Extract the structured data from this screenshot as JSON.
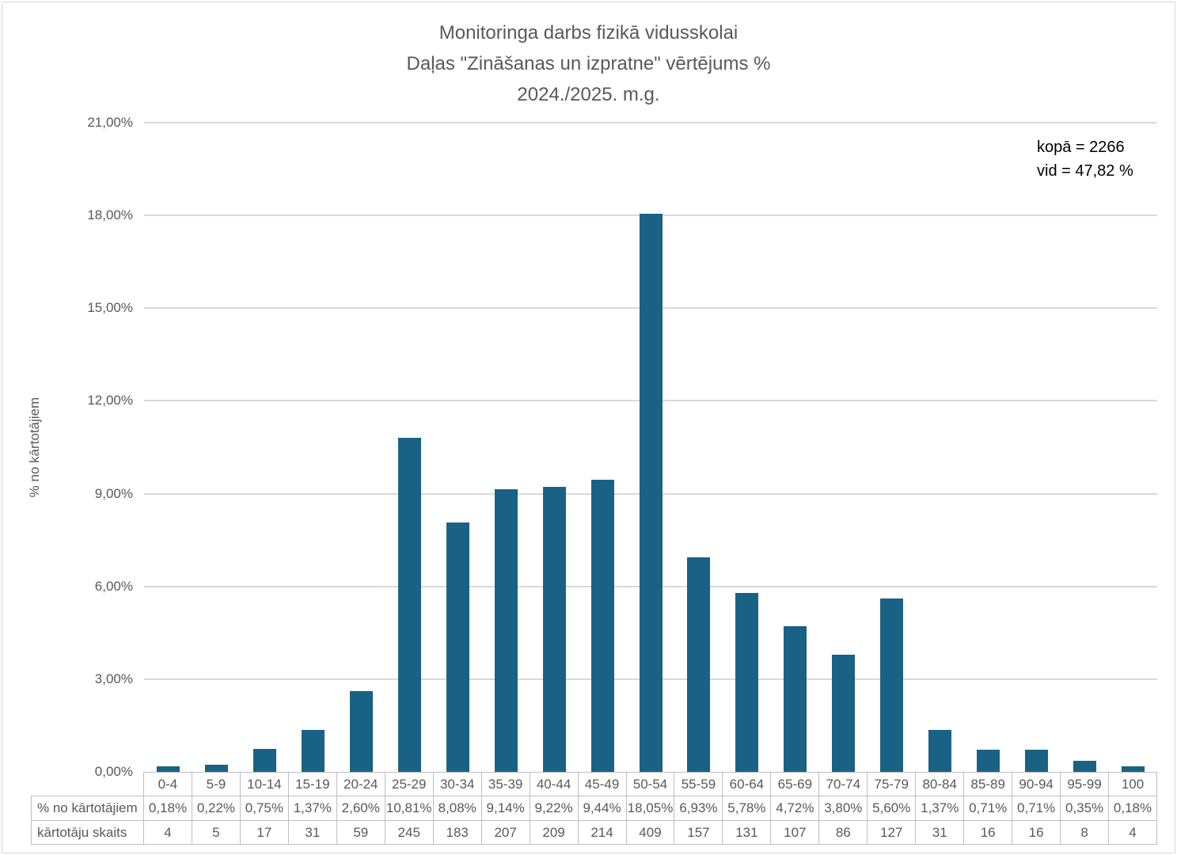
{
  "title": {
    "line1": "Monitoringa darbs fizikā vidusskolai",
    "line2": "Daļas \"Zināšanas un izpratne\" vērtējums %",
    "line3": "2024./2025. m.g."
  },
  "annotation": {
    "total_label": "kopā = 2266",
    "average_label": "vid = 47,82 %"
  },
  "chart_data": {
    "type": "bar",
    "title": "Monitoringa darbs fizikā vidusskolai — Daļas \"Zināšanas un izpratne\" vērtējums % — 2024./2025. m.g.",
    "xlabel": "",
    "ylabel": "% no kārtotājiem",
    "ylim": [
      0,
      21
    ],
    "ytick_step": 3,
    "ytick_labels": [
      "0,00%",
      "3,00%",
      "6,00%",
      "9,00%",
      "12,00%",
      "15,00%",
      "18,00%",
      "21,00%"
    ],
    "grid": true,
    "legend": "none",
    "bar_color": "#1a6285",
    "categories": [
      "0-4",
      "5-9",
      "10-14",
      "15-19",
      "20-24",
      "25-29",
      "30-34",
      "35-39",
      "40-44",
      "45-49",
      "50-54",
      "55-59",
      "60-64",
      "65-69",
      "70-74",
      "75-79",
      "80-84",
      "85-89",
      "90-94",
      "95-99",
      "100"
    ],
    "values": [
      0.18,
      0.22,
      0.75,
      1.37,
      2.6,
      10.81,
      8.08,
      9.14,
      9.22,
      9.44,
      18.05,
      6.93,
      5.78,
      4.72,
      3.8,
      5.6,
      1.37,
      0.71,
      0.71,
      0.35,
      0.18
    ],
    "totals": {
      "kopa": 2266,
      "vid_percent": "47,82"
    },
    "data_table": {
      "percent_row_label": "% no kārtotājiem",
      "percent_row_values": [
        "0,18%",
        "0,22%",
        "0,75%",
        "1,37%",
        "2,60%",
        "10,81%",
        "8,08%",
        "9,14%",
        "9,22%",
        "9,44%",
        "18,05%",
        "6,93%",
        "5,78%",
        "4,72%",
        "3,80%",
        "5,60%",
        "1,37%",
        "0,71%",
        "0,71%",
        "0,35%",
        "0,18%"
      ],
      "count_row_label": "kārtotāju skaits",
      "count_row_values": [
        "4",
        "5",
        "17",
        "31",
        "59",
        "245",
        "183",
        "207",
        "209",
        "214",
        "409",
        "157",
        "131",
        "107",
        "86",
        "127",
        "31",
        "16",
        "16",
        "8",
        "4"
      ]
    }
  }
}
